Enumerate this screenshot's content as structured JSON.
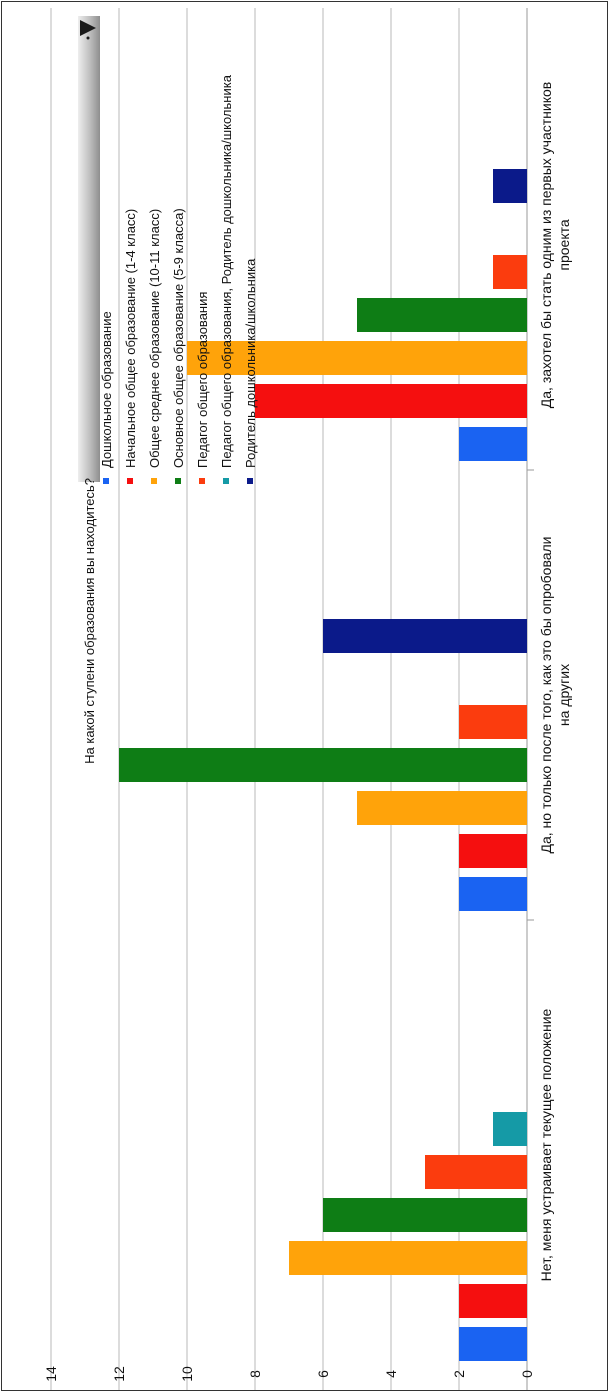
{
  "chart_data": {
    "type": "bar",
    "orientation": "rotated-90",
    "title": "",
    "xlabel": "",
    "ylabel": "",
    "ylim": [
      0,
      14
    ],
    "yticks": [
      0,
      2,
      4,
      6,
      8,
      10,
      12,
      14
    ],
    "grid": true,
    "legend_title": "На какой ступени образования вы находитесь?",
    "legend_position": "top",
    "categories": [
      [
        "Да, захотел бы стать одним из первых участников",
        "проекта"
      ],
      [
        "Да, но только после того, как это бы опробовали",
        "на других"
      ],
      [
        "Нет, меня устраивает текущее положение"
      ]
    ],
    "series": [
      {
        "name": "Дошкольное образование",
        "color": "#1a63f2",
        "values": [
          2,
          2,
          2
        ]
      },
      {
        "name": "Начальное общее образование (1-4 класс)",
        "color": "#f50f0f",
        "values": [
          8,
          2,
          2
        ]
      },
      {
        "name": "Общее среднее образование (10-11 класс)",
        "color": "#ffa30a",
        "values": [
          10,
          5,
          7
        ]
      },
      {
        "name": "Основное общее образование (5-9 класса)",
        "color": "#0e7d15",
        "values": [
          5,
          12,
          6
        ]
      },
      {
        "name": "Педагог общего образования",
        "color": "#fb3c0e",
        "values": [
          1,
          2,
          3
        ]
      },
      {
        "name": "Педагог общего образования, Родитель дошкольника/школьника",
        "color": "#159aa6",
        "values": [
          0,
          0,
          1
        ]
      },
      {
        "name": "Родитель дошкольника/школьника",
        "color": "#0b1a8a",
        "values": [
          1,
          6,
          0
        ]
      }
    ]
  },
  "colors": {
    "grid": "#b9b9b9",
    "axis": "#9a9a9a",
    "filter_gradient_top": "#e8e8e8",
    "filter_gradient_bottom": "#9c9c9c"
  },
  "icons": {
    "filter_dropdown": "dropdown-arrow-icon"
  }
}
